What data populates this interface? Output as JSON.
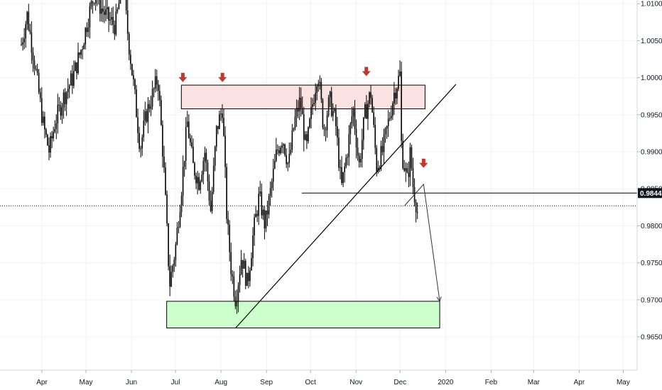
{
  "chart_data": {
    "type": "candlestick",
    "x_tick_labels": [
      "Apr",
      "May",
      "Jun",
      "Jul",
      "Aug",
      "Sep",
      "Oct",
      "Nov",
      "Dec",
      "2020",
      "Feb",
      "Mar",
      "Apr",
      "May"
    ],
    "y_tick_labels": [
      "1.01000",
      "1.00500",
      "1.00000",
      "0.99500",
      "0.99000",
      "0.98500",
      "0.98000",
      "0.97500",
      "0.97000",
      "0.96500"
    ],
    "y_tick_values": [
      1.01,
      1.005,
      1.0,
      0.995,
      0.99,
      0.985,
      0.98,
      0.975,
      0.97,
      0.965
    ],
    "ylim": [
      0.9605,
      1.0105
    ],
    "current_price_label": "0.98442",
    "current_price": 0.98442,
    "current_close_line": 0.9827,
    "grid": true,
    "colors": {
      "candle": "#000000",
      "resistance_zone_fill": "#fbe2e2",
      "support_zone_fill": "#ccffcc",
      "arrow_marker": "#c0392b",
      "price_label_bg": "#131722",
      "grid": "#f0f3fa",
      "axis_text": "#131722"
    },
    "zones": [
      {
        "type": "resistance",
        "start": "2019-07-05",
        "end": "2019-12-18",
        "top": 0.999,
        "bottom": 0.9958
      },
      {
        "type": "support",
        "start": "2019-06-25",
        "end": "2019-12-28",
        "top": 0.9698,
        "bottom": 0.9662
      }
    ],
    "trendline": {
      "start": {
        "date": "2019-08-11",
        "price": 0.9662
      },
      "end": {
        "date": "2020-01-08",
        "price": 0.9991
      }
    },
    "neckline": {
      "start": {
        "date": "2019-09-25",
        "price": 0.9844
      },
      "end": "right-edge",
      "price": 0.98442
    },
    "projection_path": [
      {
        "date": "2019-12-04",
        "price": 0.9827
      },
      {
        "date": "2019-12-17",
        "price": 0.9856
      },
      {
        "date": "2019-12-28",
        "price": 0.9698
      }
    ],
    "down_arrows": [
      {
        "date": "2019-07-06",
        "price": 0.9998
      },
      {
        "date": "2019-08-02",
        "price": 0.9998
      },
      {
        "date": "2019-11-08",
        "price": 1.0006
      },
      {
        "date": "2019-12-17",
        "price": 0.9882
      }
    ],
    "series_summary": "EURGBP-like daily candles, Mar 2019 to Dec 2019",
    "path_points": [
      [
        "2019-03-18",
        1.0045
      ],
      [
        "2019-03-22",
        1.0085
      ],
      [
        "2019-03-27",
        1.002
      ],
      [
        "2019-04-02",
        0.9935
      ],
      [
        "2019-04-06",
        0.99
      ],
      [
        "2019-04-10",
        0.994
      ],
      [
        "2019-04-16",
        0.9975
      ],
      [
        "2019-04-22",
        1.0
      ],
      [
        "2019-04-28",
        1.004
      ],
      [
        "2019-05-03",
        1.0085
      ],
      [
        "2019-05-07",
        1.0115
      ],
      [
        "2019-05-11",
        1.0095
      ],
      [
        "2019-05-16",
        1.008
      ],
      [
        "2019-05-21",
        1.007
      ],
      [
        "2019-05-26",
        1.013
      ],
      [
        "2019-05-30",
        1.005
      ],
      [
        "2019-06-03",
        0.998
      ],
      [
        "2019-06-07",
        0.9905
      ],
      [
        "2019-06-11",
        0.995
      ],
      [
        "2019-06-15",
        0.9975
      ],
      [
        "2019-06-19",
        1.0
      ],
      [
        "2019-06-23",
        0.988
      ],
      [
        "2019-06-27",
        0.972
      ],
      [
        "2019-07-01",
        0.977
      ],
      [
        "2019-07-05",
        0.985
      ],
      [
        "2019-07-09",
        0.994
      ],
      [
        "2019-07-13",
        0.988
      ],
      [
        "2019-07-17",
        0.986
      ],
      [
        "2019-07-21",
        0.99
      ],
      [
        "2019-07-25",
        0.982
      ],
      [
        "2019-07-29",
        0.993
      ],
      [
        "2019-08-02",
        0.996
      ],
      [
        "2019-08-05",
        0.981
      ],
      [
        "2019-08-08",
        0.974
      ],
      [
        "2019-08-11",
        0.97
      ],
      [
        "2019-08-15",
        0.976
      ],
      [
        "2019-08-19",
        0.972
      ],
      [
        "2019-08-23",
        0.979
      ],
      [
        "2019-08-27",
        0.984
      ],
      [
        "2019-08-31",
        0.98
      ],
      [
        "2019-09-04",
        0.985
      ],
      [
        "2019-09-08",
        0.99
      ],
      [
        "2019-09-12",
        0.992
      ],
      [
        "2019-09-16",
        0.988
      ],
      [
        "2019-09-20",
        0.994
      ],
      [
        "2019-09-24",
        0.997
      ],
      [
        "2019-09-28",
        0.99
      ],
      [
        "2019-10-02",
        0.996
      ],
      [
        "2019-10-06",
        1.001
      ],
      [
        "2019-10-10",
        0.993
      ],
      [
        "2019-10-14",
        0.997
      ],
      [
        "2019-10-18",
        0.994
      ],
      [
        "2019-10-22",
        0.985
      ],
      [
        "2019-10-26",
        0.99
      ],
      [
        "2019-10-30",
        0.996
      ],
      [
        "2019-11-03",
        0.988
      ],
      [
        "2019-11-07",
        0.995
      ],
      [
        "2019-11-11",
        0.998
      ],
      [
        "2019-11-15",
        0.988
      ],
      [
        "2019-11-19",
        0.99
      ],
      [
        "2019-11-23",
        0.994
      ],
      [
        "2019-11-27",
        0.998
      ],
      [
        "2019-12-01",
        1.0005
      ],
      [
        "2019-12-02",
        0.99
      ],
      [
        "2019-12-04",
        0.988
      ],
      [
        "2019-12-06",
        0.986
      ],
      [
        "2019-12-08",
        0.99
      ],
      [
        "2019-12-10",
        0.985
      ],
      [
        "2019-12-12",
        0.983
      ],
      [
        "2019-12-13",
        0.9816
      ]
    ]
  }
}
